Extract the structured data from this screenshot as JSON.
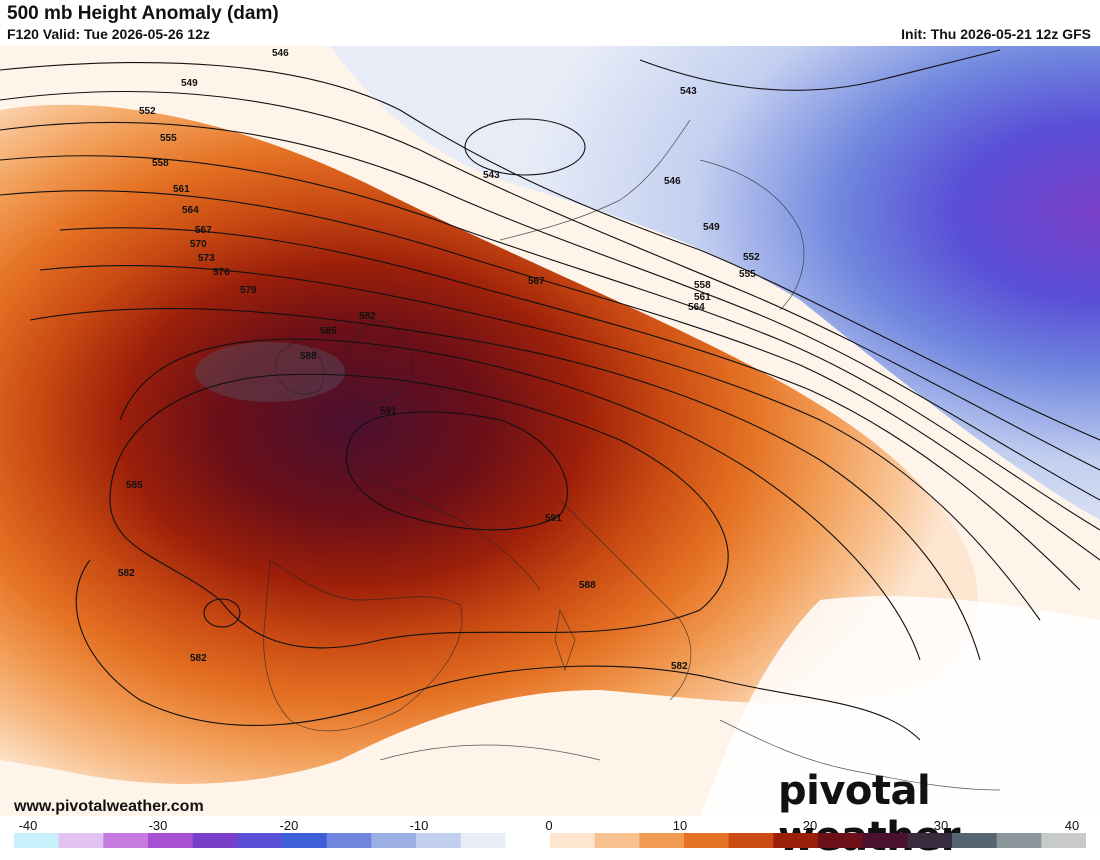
{
  "header": {
    "title": "500 mb Height Anomaly (dam)",
    "valid": "F120 Valid: Tue 2026-05-26 12z",
    "init": "Init: Thu 2026-05-21 12z GFS"
  },
  "map": {
    "contour_labels": [
      "546",
      "549",
      "552",
      "555",
      "558",
      "561",
      "564",
      "567",
      "570",
      "573",
      "576",
      "579",
      "582",
      "585",
      "588",
      "591",
      "543",
      "546",
      "549",
      "552",
      "555",
      "558",
      "561",
      "564",
      "567",
      "582",
      "585",
      "582",
      "582",
      "582",
      "591",
      "588",
      "582"
    ]
  },
  "footer": {
    "site": "www.pivotalweather.com",
    "brand": "pivotal weather"
  },
  "colorbar": {
    "labels": [
      "-40",
      "-30",
      "-20",
      "-10",
      "0",
      "10",
      "20",
      "30",
      "40"
    ],
    "colors": [
      "#c8f0fa",
      "#e2c2f0",
      "#c77be0",
      "#a64fd3",
      "#7a3fc8",
      "#5a4fd7",
      "#3f5fd8",
      "#6f86de",
      "#9db0e6",
      "#c3cff0",
      "#e7ecf7",
      "#ffffff",
      "#fde5cf",
      "#f8c190",
      "#f19a52",
      "#e57224",
      "#c94a12",
      "#9c1f0a",
      "#6b0f18",
      "#4a1030",
      "#3a2a3e",
      "#556571",
      "#8a959c",
      "#c7c9cb"
    ]
  }
}
